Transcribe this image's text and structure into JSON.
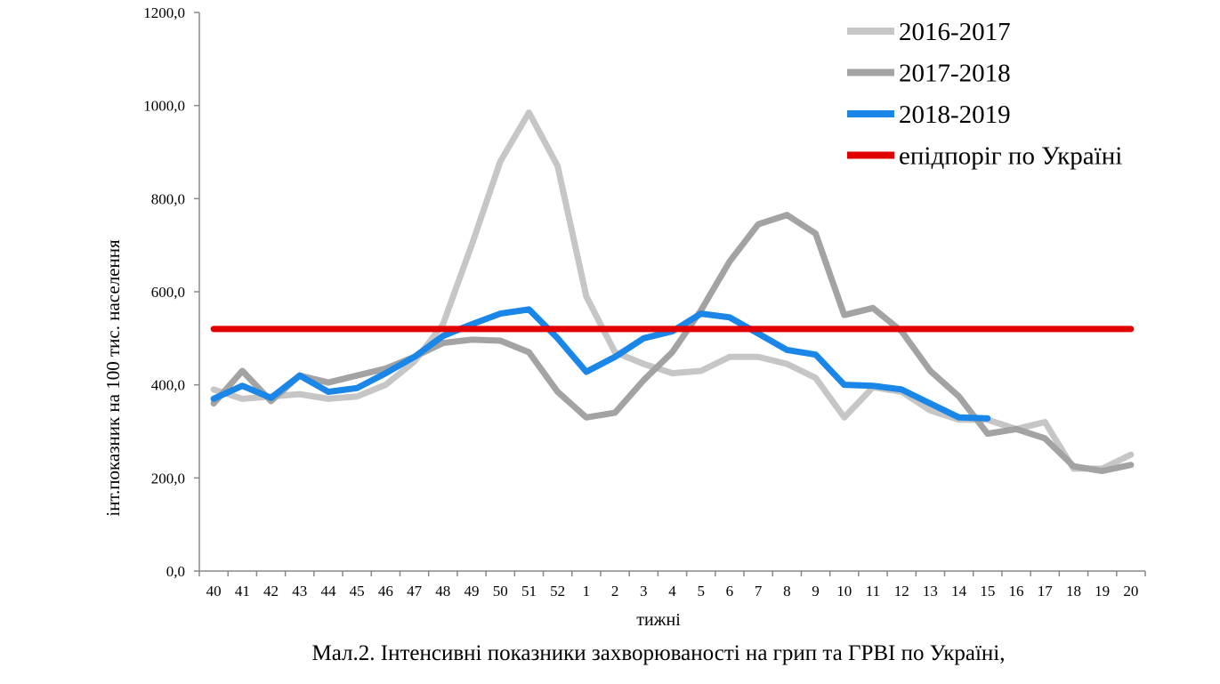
{
  "chart_data": {
    "type": "line",
    "caption": "Мал.2. Інтенсивні показники захворюваності на грип та ГРВІ по Україні,",
    "x_label": "тижні",
    "y_label": "інт.показник на 100 тис. населення",
    "categories": [
      "40",
      "41",
      "42",
      "43",
      "44",
      "45",
      "46",
      "47",
      "48",
      "49",
      "50",
      "51",
      "52",
      "1",
      "2",
      "3",
      "4",
      "5",
      "6",
      "7",
      "8",
      "9",
      "10",
      "11",
      "12",
      "13",
      "14",
      "15",
      "16",
      "17",
      "18",
      "19",
      "20"
    ],
    "ylim": [
      0,
      1200
    ],
    "yticks": [
      {
        "value": 0,
        "label": "0,0"
      },
      {
        "value": 200,
        "label": "200,0"
      },
      {
        "value": 400,
        "label": "400,0"
      },
      {
        "value": 600,
        "label": "600,0"
      },
      {
        "value": 800,
        "label": "800,0"
      },
      {
        "value": 1000,
        "label": "1000,0"
      },
      {
        "value": 1200,
        "label": "1200,0"
      }
    ],
    "legend": "top-right",
    "series": [
      {
        "name": "2016-2017",
        "color": "#c6c6c6",
        "values": [
          390,
          370,
          375,
          380,
          370,
          375,
          400,
          450,
          530,
          700,
          880,
          985,
          870,
          590,
          470,
          445,
          425,
          430,
          460,
          460,
          445,
          415,
          330,
          395,
          385,
          345,
          325,
          325,
          305,
          320,
          220,
          220,
          250
        ]
      },
      {
        "name": "2017-2018",
        "color": "#a3a3a3",
        "values": [
          360,
          430,
          365,
          420,
          405,
          420,
          435,
          460,
          490,
          497,
          495,
          470,
          385,
          330,
          340,
          410,
          470,
          560,
          665,
          745,
          765,
          725,
          550,
          565,
          515,
          430,
          375,
          295,
          305,
          285,
          225,
          215,
          228
        ]
      },
      {
        "name": "2018-2019",
        "color": "#1a86e8",
        "values": [
          370,
          398,
          372,
          420,
          385,
          393,
          425,
          460,
          505,
          530,
          553,
          562,
          500,
          428,
          460,
          500,
          515,
          553,
          545,
          510,
          475,
          465,
          400,
          398,
          390,
          360,
          330,
          328,
          null,
          null,
          null,
          null,
          null
        ]
      },
      {
        "name": "епідпоріг по Україні",
        "color": "#e00000",
        "values": [
          520,
          520,
          520,
          520,
          520,
          520,
          520,
          520,
          520,
          520,
          520,
          520,
          520,
          520,
          520,
          520,
          520,
          520,
          520,
          520,
          520,
          520,
          520,
          520,
          520,
          520,
          520,
          520,
          520,
          520,
          520,
          520,
          520
        ]
      }
    ]
  }
}
